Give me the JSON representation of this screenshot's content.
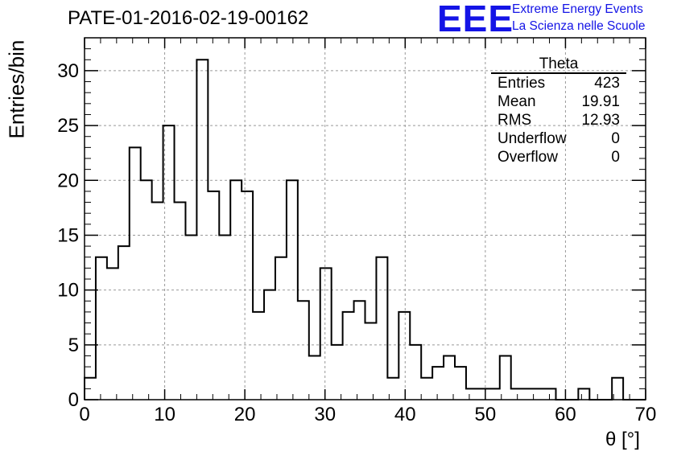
{
  "header": {
    "title": "PATE-01-2016-02-19-00162",
    "logo_text": "EEE",
    "logo_line1": "Extreme Energy Events",
    "logo_line2": "La Scienza nelle Scuole"
  },
  "stats": {
    "name": "Theta",
    "rows": [
      {
        "label": "Entries",
        "value": "423"
      },
      {
        "label": "Mean",
        "value": "19.91"
      },
      {
        "label": "RMS",
        "value": "12.93"
      },
      {
        "label": "Underflow",
        "value": "0"
      },
      {
        "label": "Overflow",
        "value": "0"
      }
    ]
  },
  "colors": {
    "logo": "#1414e6",
    "line": "#000000",
    "grid": "#999999"
  },
  "chart_data": {
    "type": "bar",
    "style": "step-histogram",
    "xlabel": "θ [°]",
    "ylabel": "Entries/bin",
    "xlim": [
      0,
      70
    ],
    "ylim": [
      0,
      33
    ],
    "bin_width": 1.4,
    "x_ticks": [
      0,
      10,
      20,
      30,
      40,
      50,
      60,
      70
    ],
    "y_ticks": [
      0,
      5,
      10,
      15,
      20,
      25,
      30
    ],
    "grid": true,
    "values": [
      2,
      13,
      12,
      14,
      23,
      20,
      18,
      25,
      18,
      15,
      31,
      19,
      15,
      20,
      19,
      8,
      10,
      13,
      20,
      9,
      4,
      12,
      5,
      8,
      9,
      7,
      13,
      2,
      8,
      5,
      2,
      3,
      4,
      3,
      1,
      1,
      1,
      4,
      1,
      1,
      1,
      1,
      0,
      0,
      1,
      0,
      0,
      2,
      0,
      0
    ]
  }
}
